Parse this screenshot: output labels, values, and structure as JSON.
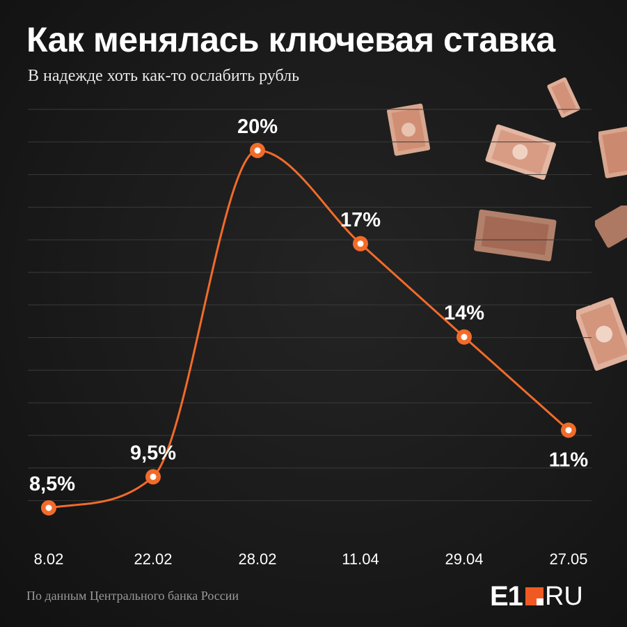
{
  "title": "Как менялась ключевая ставка",
  "subtitle": "В надежде хоть как-то ослабить рубль",
  "source": "По данным Центрального банка России",
  "logo": {
    "main": "E1",
    "suffix": "RU"
  },
  "colors": {
    "line": "#f26b2a",
    "background": "#161616",
    "text": "#ffffff",
    "grid": "#3a3a3a"
  },
  "chart_data": {
    "type": "line",
    "title": "Как менялась ключевая ставка",
    "subtitle": "В надежде хоть как-то ослабить рубль",
    "xlabel": "",
    "ylabel": "",
    "categories": [
      "8.02",
      "22.02",
      "28.02",
      "11.04",
      "29.04",
      "27.05"
    ],
    "values": [
      8.5,
      9.5,
      20,
      17,
      14,
      11
    ],
    "labels": [
      "8,5%",
      "9,5%",
      "20%",
      "17%",
      "14%",
      "11%"
    ],
    "ylim": [
      7,
      22
    ],
    "grid": true,
    "legend": "none"
  }
}
